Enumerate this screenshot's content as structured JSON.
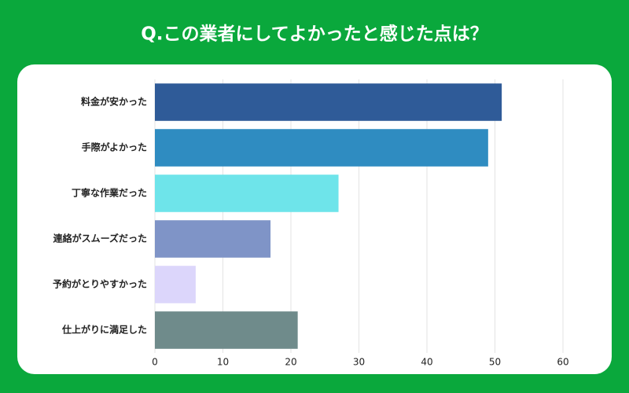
{
  "chart_data": {
    "type": "hbar",
    "title": "Q.この業者にしてよかったと感じた点は？",
    "categories": [
      "料金が安かった",
      "手際がよかった",
      "丁寧な作業だった",
      "連絡がスムーズだった",
      "予約がとりやすかった",
      "仕上がりに満足した"
    ],
    "values": [
      51,
      49,
      27,
      17,
      6,
      21
    ],
    "colors": [
      "#2f5b98",
      "#2f8cc1",
      "#6ee4ea",
      "#7f94c7",
      "#dcd6fb",
      "#6f8b8b"
    ],
    "xlim": [
      0,
      60
    ],
    "xticks": [
      0,
      10,
      20,
      30,
      40,
      50,
      60
    ],
    "grid": true
  }
}
